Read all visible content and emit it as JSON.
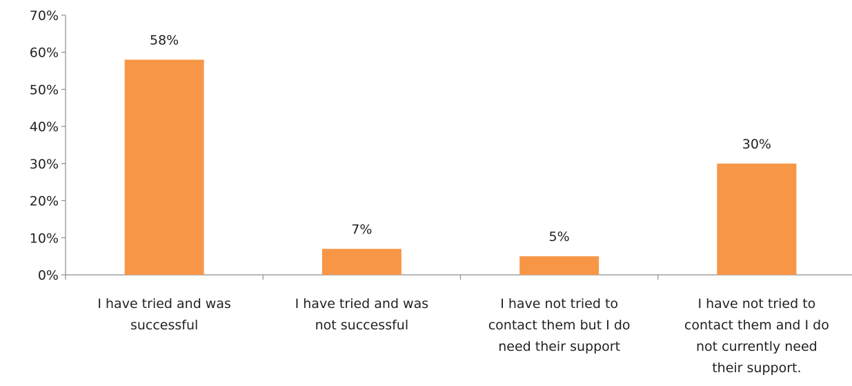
{
  "chart_data": {
    "type": "bar",
    "categories": [
      [
        "I have tried and was",
        "successful"
      ],
      [
        "I have tried and was",
        "not successful"
      ],
      [
        "I have not tried to",
        "contact them but I do",
        "need their support"
      ],
      [
        "I have not tried to",
        "contact them and I do",
        "not currently need",
        "their support."
      ]
    ],
    "values": [
      58,
      7,
      5,
      30
    ],
    "data_labels": [
      "58%",
      "7%",
      "5%",
      "30%"
    ],
    "ylim": [
      0,
      70
    ],
    "yticks": [
      "0%",
      "10%",
      "20%",
      "30%",
      "40%",
      "50%",
      "60%",
      "70%"
    ],
    "bar_color": "#f79646",
    "grid": false,
    "legend": "none",
    "title": "",
    "xlabel": "",
    "ylabel": ""
  }
}
